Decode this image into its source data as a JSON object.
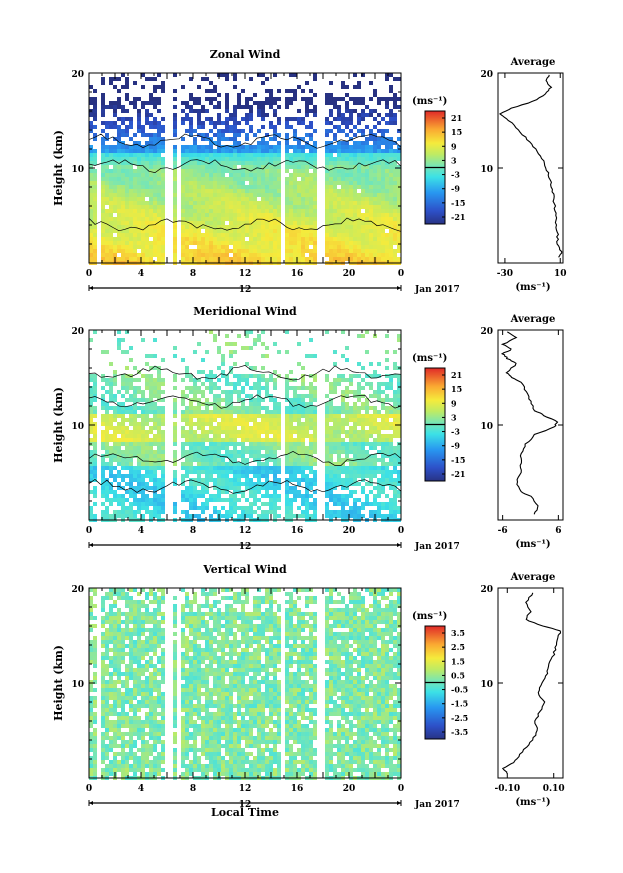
{
  "chart_data": [
    {
      "type": "heatmap",
      "title": "Zonal Wind",
      "ylabel": "Height (km)",
      "ylim": [
        0,
        20
      ],
      "y_ticks": [
        "10",
        "20"
      ],
      "x_ticks": [
        "0",
        "4",
        "8",
        "12",
        "16",
        "20",
        "0"
      ],
      "date_label": "12",
      "month_label": "Jan 2017",
      "colorbar": {
        "unit": "(ms⁻¹)",
        "ticks": [
          "21",
          "15",
          "9",
          "3",
          "-3",
          "-9",
          "-15",
          "-21"
        ],
        "range": [
          -24,
          24
        ]
      },
      "profile": {
        "title": "Average",
        "xlabel": "(ms⁻¹)",
        "xlim": [
          -35,
          12
        ],
        "x_ticks": [
          "-30",
          "10"
        ],
        "y_ticks": [
          "10",
          "20"
        ],
        "points": [
          [
            9,
            0.6
          ],
          [
            11,
            1.2
          ],
          [
            8,
            2.0
          ],
          [
            8,
            3.0
          ],
          [
            7,
            4.0
          ],
          [
            7,
            5.0
          ],
          [
            6,
            6.0
          ],
          [
            5,
            7.0
          ],
          [
            4,
            8.0
          ],
          [
            2,
            9.0
          ],
          [
            0,
            10.0
          ],
          [
            -3,
            11.0
          ],
          [
            -8,
            12.0
          ],
          [
            -14,
            13.0
          ],
          [
            -20,
            14.0
          ],
          [
            -27,
            15.0
          ],
          [
            -33,
            15.7
          ],
          [
            -25,
            16.3
          ],
          [
            -10,
            17.0
          ],
          [
            0,
            17.8
          ],
          [
            3,
            18.5
          ],
          [
            0,
            19.2
          ],
          [
            2,
            19.8
          ]
        ]
      }
    },
    {
      "type": "heatmap",
      "title": "Meridional Wind",
      "ylabel": "Height (km)",
      "ylim": [
        0,
        20
      ],
      "y_ticks": [
        "10",
        "20"
      ],
      "x_ticks": [
        "0",
        "4",
        "8",
        "12",
        "16",
        "20",
        "0"
      ],
      "date_label": "12",
      "month_label": "Jan 2017",
      "colorbar": {
        "unit": "(ms⁻¹)",
        "ticks": [
          "21",
          "15",
          "9",
          "3",
          "-3",
          "-9",
          "-15",
          "-21"
        ],
        "range": [
          -24,
          24
        ]
      },
      "profile": {
        "title": "Average",
        "xlabel": "(ms⁻¹)",
        "xlim": [
          -7,
          7
        ],
        "x_ticks": [
          "-6",
          "6"
        ],
        "y_ticks": [
          "10",
          "20"
        ],
        "points": [
          [
            1,
            0.6
          ],
          [
            1.5,
            1.5
          ],
          [
            0,
            2.5
          ],
          [
            -2,
            3.0
          ],
          [
            -3,
            4.0
          ],
          [
            -2,
            5.0
          ],
          [
            -2,
            6.0
          ],
          [
            -2,
            7.0
          ],
          [
            -1,
            8.0
          ],
          [
            1,
            9.0
          ],
          [
            5,
            9.8
          ],
          [
            6,
            10.3
          ],
          [
            3,
            11.0
          ],
          [
            1,
            11.5
          ],
          [
            0,
            12.5
          ],
          [
            -1,
            13.5
          ],
          [
            -2,
            14.5
          ],
          [
            -4,
            15.0
          ],
          [
            -5,
            15.5
          ],
          [
            -3,
            16.5
          ],
          [
            -5,
            17.0
          ],
          [
            -6,
            17.5
          ],
          [
            -4,
            18.0
          ],
          [
            -6,
            18.5
          ],
          [
            -3,
            19.2
          ],
          [
            -5,
            19.8
          ]
        ]
      }
    },
    {
      "type": "heatmap",
      "title": "Vertical Wind",
      "ylabel": "Height (km)",
      "xlabel": "Local Time",
      "ylim": [
        0,
        20
      ],
      "y_ticks": [
        "10",
        "20"
      ],
      "x_ticks": [
        "0",
        "4",
        "8",
        "12",
        "16",
        "20",
        "0"
      ],
      "date_label": "12",
      "month_label": "Jan 2017",
      "colorbar": {
        "unit": "(ms⁻¹)",
        "ticks": [
          "3.5",
          "2.5",
          "1.5",
          "0.5",
          "-0.5",
          "-1.5",
          "-2.5",
          "-3.5"
        ],
        "range": [
          -4,
          4
        ]
      },
      "profile": {
        "title": "Average",
        "xlabel": "(ms⁻¹)",
        "xlim": [
          -0.14,
          0.14
        ],
        "x_ticks": [
          "-0.10",
          "0.10"
        ],
        "y_ticks": [
          "10",
          "20"
        ],
        "points": [
          [
            -0.1,
            0.5
          ],
          [
            -0.12,
            1.0
          ],
          [
            -0.08,
            1.5
          ],
          [
            -0.06,
            2.0
          ],
          [
            -0.03,
            3.0
          ],
          [
            0.01,
            4.0
          ],
          [
            0.03,
            5.0
          ],
          [
            0.02,
            6.0
          ],
          [
            0.04,
            7.0
          ],
          [
            0.06,
            8.0
          ],
          [
            0.03,
            9.0
          ],
          [
            0.05,
            10.0
          ],
          [
            0.07,
            11.0
          ],
          [
            0.08,
            12.0
          ],
          [
            0.1,
            13.0
          ],
          [
            0.11,
            14.0
          ],
          [
            0.12,
            15.0
          ],
          [
            0.13,
            15.5
          ],
          [
            0.05,
            16.0
          ],
          [
            -0.02,
            16.7
          ],
          [
            0.0,
            17.5
          ],
          [
            -0.02,
            18.5
          ],
          [
            0.01,
            19.5
          ]
        ]
      }
    }
  ]
}
